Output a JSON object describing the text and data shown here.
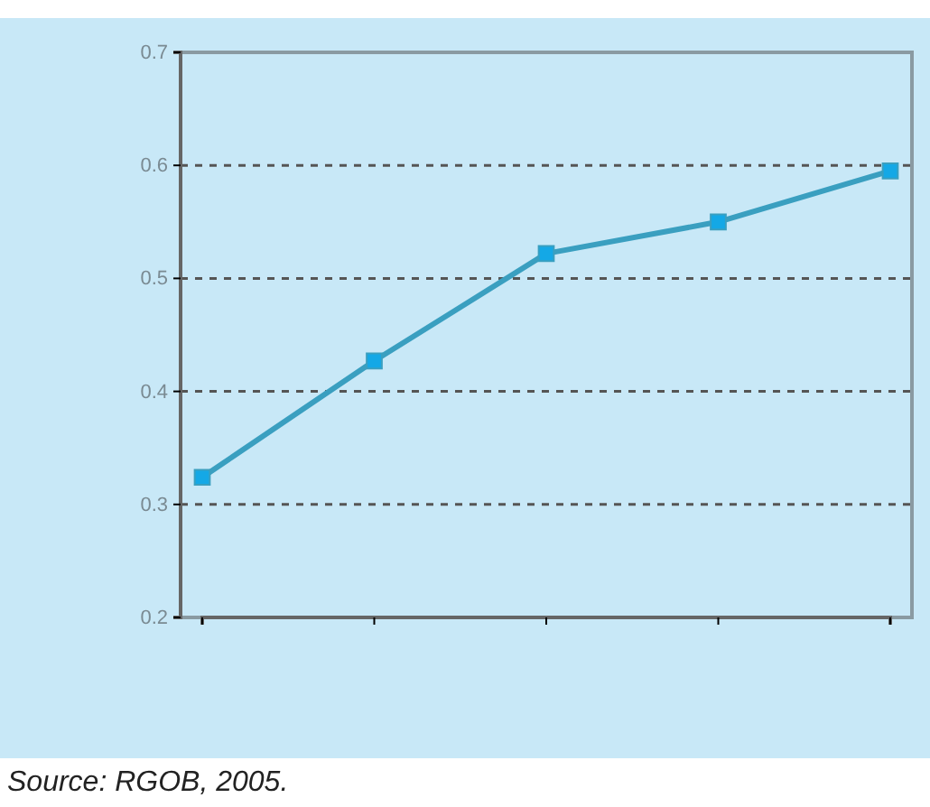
{
  "chart_data": {
    "type": "line",
    "categories": [
      null,
      null,
      null,
      null,
      null
    ],
    "series": [
      {
        "color": "#3a9fc0",
        "values": [
          0.324,
          0.427,
          0.522,
          0.55,
          0.595
        ]
      }
    ],
    "ylim": [
      0.2,
      0.7
    ],
    "yticks": [
      0.2,
      0.3,
      0.4,
      0.5,
      0.6,
      0.7
    ],
    "grid": "y",
    "marker": "square",
    "line_style": "solid",
    "annotations": [
      "Source: RGOB, 2005."
    ]
  }
}
